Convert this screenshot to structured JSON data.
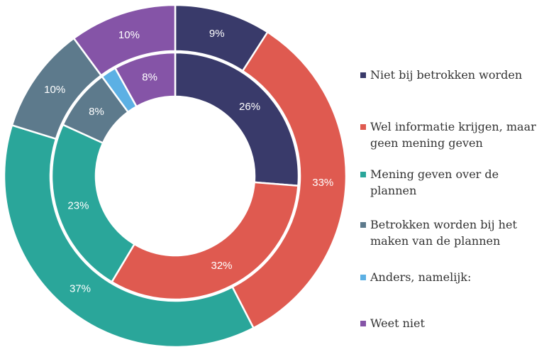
{
  "chart_data": {
    "type": "donut",
    "categories": [
      "Niet bij betrokken worden",
      "Wel informatie krijgen, maar geen mening geven",
      "Mening geven over de plannen",
      "Betrokken worden bij het maken van de plannen",
      "Anders, namelijk:",
      "Weet niet"
    ],
    "colors": [
      "#393a6a",
      "#df5a50",
      "#2aa69a",
      "#5d7a8c",
      "#5cb0e4",
      "#8554a7"
    ],
    "series": [
      {
        "values": [
          9,
          33,
          37,
          10,
          0,
          10
        ],
        "value_labels": [
          "9%",
          "33%",
          "37%",
          "10%",
          null,
          "10%"
        ]
      },
      {
        "values": [
          26,
          32,
          23,
          8,
          2,
          8
        ],
        "value_labels": [
          "26%",
          "32%",
          "23%",
          "8%",
          null,
          "8%"
        ]
      }
    ]
  }
}
